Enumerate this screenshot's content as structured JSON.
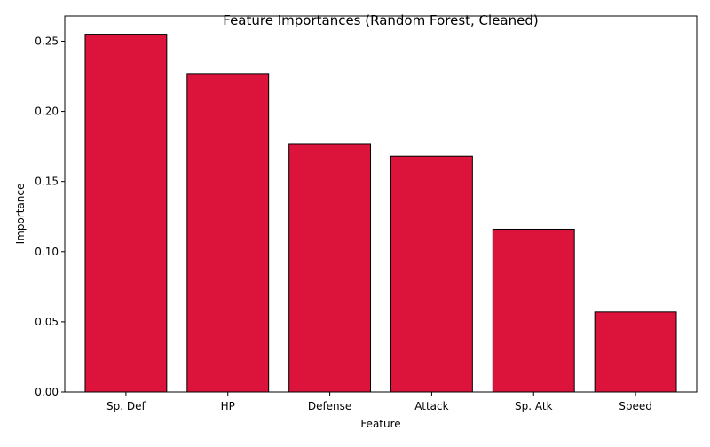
{
  "chart_data": {
    "type": "bar",
    "title": "Feature Importances (Random Forest, Cleaned)",
    "xlabel": "Feature",
    "ylabel": "Importance",
    "categories": [
      "Sp. Def",
      "HP",
      "Defense",
      "Attack",
      "Sp. Atk",
      "Speed"
    ],
    "values": [
      0.255,
      0.227,
      0.177,
      0.168,
      0.116,
      0.057
    ],
    "ylim": [
      0,
      0.268
    ],
    "yticks": [
      0.0,
      0.05,
      0.1,
      0.15,
      0.2,
      0.25
    ],
    "ytick_labels": [
      "0.00",
      "0.05",
      "0.10",
      "0.15",
      "0.20",
      "0.25"
    ],
    "grid": false,
    "colors": {
      "bar_fill": "#dc143c",
      "bar_edge": "#000000"
    }
  }
}
